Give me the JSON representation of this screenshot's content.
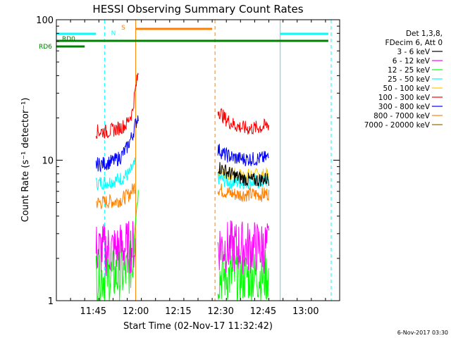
{
  "chart_data": {
    "type": "line",
    "title": "HESSI Observing Summary Count Rates",
    "xlabel": "Start Time (02-Nov-17 11:32:42)",
    "ylabel": "Count Rate (s⁻¹ detector⁻¹)",
    "yscale": "log",
    "ylim": [
      1,
      100
    ],
    "xlim": [
      "11:32",
      "13:12"
    ],
    "x_ticks": [
      "11:45",
      "12:00",
      "12:15",
      "12:30",
      "12:45",
      "13:00"
    ],
    "y_ticks": [
      "1",
      "10",
      "100"
    ],
    "grid": false,
    "legend_position": "right",
    "legend_header": [
      "Det 1,3,8,",
      "FDecim 6, Att 0"
    ],
    "footer_date": "6-Nov-2017 03:30",
    "series": [
      {
        "name": "3 - 6 keV",
        "color": "#000000",
        "segments": [
          {
            "start": "12:29",
            "end": "12:47",
            "values": [
              9.0,
              8.5,
              8.0,
              7.6,
              7.4,
              7.2,
              7.2,
              7.3,
              7.4
            ]
          }
        ]
      },
      {
        "name": "6 - 12 keV",
        "color": "#ff00ff",
        "segments": [
          {
            "start": "11:46",
            "end": "12:00",
            "values": [
              2.3,
              2.3,
              2.3,
              2.3,
              2.4,
              2.4,
              2.5
            ]
          },
          {
            "start": "12:29",
            "end": "12:47",
            "values": [
              2.5,
              2.4,
              2.4,
              2.4,
              2.4,
              2.4,
              2.4,
              2.4,
              2.4
            ]
          }
        ]
      },
      {
        "name": "12 - 25 keV",
        "color": "#00ff00",
        "segments": [
          {
            "start": "11:46",
            "end": "12:01",
            "values": [
              1.5,
              1.5,
              1.5,
              1.5,
              1.5,
              1.6,
              1.8,
              6.0
            ]
          },
          {
            "start": "12:29",
            "end": "12:47",
            "values": [
              1.5,
              1.5,
              1.5,
              1.5,
              1.5,
              1.5,
              1.5,
              1.5,
              1.5
            ]
          }
        ]
      },
      {
        "name": "25 - 50 keV",
        "color": "#00ffff",
        "segments": [
          {
            "start": "11:46",
            "end": "12:00",
            "values": [
              6.8,
              7.0,
              7.0,
              7.2,
              7.5,
              8.0,
              9.5
            ]
          },
          {
            "start": "12:29",
            "end": "12:47",
            "values": [
              7.5,
              7.2,
              7.0,
              7.0,
              7.0,
              7.0,
              7.0,
              7.0,
              7.2
            ]
          }
        ]
      },
      {
        "name": "50 - 100 keV",
        "color": "#ffcc00",
        "segments": [
          {
            "start": "12:29",
            "end": "12:47",
            "values": [
              8.5,
              8.2,
              7.9,
              7.8,
              7.8,
              7.8,
              7.8,
              7.8,
              7.9
            ]
          }
        ]
      },
      {
        "name": "100 - 300 keV",
        "color": "#ff0000",
        "segments": [
          {
            "start": "11:46",
            "end": "12:01",
            "values": [
              16.0,
              16.0,
              16.0,
              16.5,
              17.0,
              18.0,
              22.0,
              42.0
            ]
          },
          {
            "start": "12:29",
            "end": "12:47",
            "values": [
              23.0,
              20.0,
              18.5,
              17.5,
              17.0,
              16.8,
              17.0,
              17.2,
              18.0
            ]
          }
        ]
      },
      {
        "name": "300 - 800 keV",
        "color": "#0000ff",
        "segments": [
          {
            "start": "11:46",
            "end": "12:01",
            "values": [
              9.3,
              9.4,
              9.6,
              9.9,
              10.5,
              12.0,
              15.0,
              21.0
            ]
          },
          {
            "start": "12:29",
            "end": "12:47",
            "values": [
              12.0,
              11.0,
              10.6,
              10.3,
              10.2,
              10.2,
              10.2,
              10.3,
              10.5
            ]
          }
        ]
      },
      {
        "name": "800 - 7000 keV",
        "color": "#ff8000",
        "segments": [
          {
            "start": "11:46",
            "end": "12:00",
            "values": [
              5.0,
              5.0,
              5.1,
              5.1,
              5.3,
              5.7,
              6.6
            ]
          },
          {
            "start": "12:29",
            "end": "12:47",
            "values": [
              6.3,
              6.0,
              5.8,
              5.7,
              5.7,
              5.7,
              5.7,
              5.7,
              5.8
            ]
          }
        ]
      },
      {
        "name": "7000 - 20000 keV",
        "color": "#996600",
        "segments": []
      }
    ],
    "flag_bars": [
      {
        "label": "N",
        "color": "#00ffff",
        "segments": [
          [
            "11:32",
            "11:46"
          ],
          [
            "12:51",
            "13:08"
          ]
        ]
      },
      {
        "label": "S",
        "color": "#ff8000",
        "segments": [
          [
            "12:00",
            "12:27"
          ]
        ]
      },
      {
        "label": "RD0",
        "color": "#008000",
        "segments": [
          [
            "11:32",
            "13:08"
          ]
        ]
      },
      {
        "label": "RD6",
        "color": "#008000",
        "segments": [
          [
            "11:32",
            "11:42"
          ]
        ]
      }
    ],
    "markers": [
      {
        "color": "#00ffff",
        "style": "solid",
        "time": "11:32"
      },
      {
        "color": "#00ffff",
        "style": "dashed",
        "time": "11:49"
      },
      {
        "color": "#ff8000",
        "style": "solid",
        "time": "12:00"
      },
      {
        "color": "#ff8000",
        "style": "dashed",
        "time": "12:28"
      },
      {
        "color": "#00ffff",
        "style": "solid",
        "time": "12:51"
      },
      {
        "color": "#00ffff",
        "style": "dashed",
        "time": "13:09"
      }
    ]
  }
}
